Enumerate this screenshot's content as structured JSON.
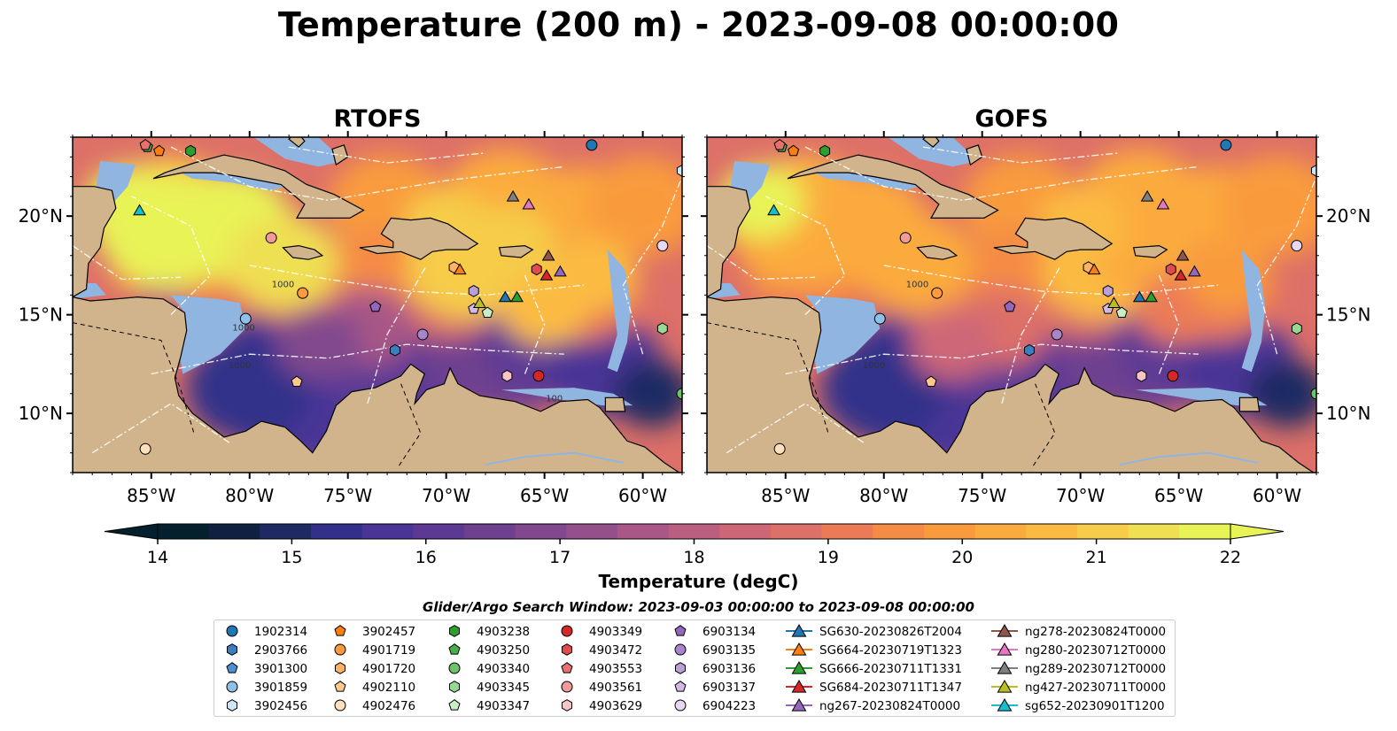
{
  "title": "Temperature (200 m) - 2023-09-08 00:00:00",
  "colors": {
    "ramp": [
      "#04202e",
      "#0e2140",
      "#1f2a63",
      "#32308a",
      "#4a3596",
      "#5c3a94",
      "#6e4190",
      "#81488e",
      "#94508a",
      "#a85787",
      "#bb5f80",
      "#cd6778",
      "#dd7068",
      "#eb7b57",
      "#f58c45",
      "#f99b3c",
      "#fbab3e",
      "#fbbb43",
      "#f6cc4a",
      "#efdf52",
      "#e8f356"
    ],
    "land": "#d2b48c",
    "shelf": "#8fb5e0",
    "frame": "#000000"
  },
  "chart_data": [
    {
      "type": "heatmap",
      "title": "RTOFS",
      "variable": "Temperature (200 m)",
      "x_ticks": [
        "85°W",
        "80°W",
        "75°W",
        "70°W",
        "65°W",
        "60°W"
      ],
      "y_ticks": [
        "10°N",
        "15°N",
        "20°N"
      ],
      "xlim": [
        -89,
        -58
      ],
      "ylim": [
        7,
        24
      ],
      "contour_labels": [
        "1000",
        "1000",
        "1000",
        "100"
      ]
    },
    {
      "type": "heatmap",
      "title": "GOFS",
      "variable": "Temperature (200 m)",
      "x_ticks": [
        "85°W",
        "80°W",
        "75°W",
        "70°W",
        "65°W",
        "60°W"
      ],
      "y_ticks": [
        "10°N",
        "15°N",
        "20°N"
      ],
      "xlim": [
        -89,
        -58
      ],
      "ylim": [
        7,
        24
      ],
      "contour_labels": [
        "1000",
        "1000"
      ]
    }
  ],
  "colorbar": {
    "label": "Temperature (degC)",
    "min": 13.5,
    "max": 22,
    "ticks": [
      "14",
      "15",
      "16",
      "17",
      "18",
      "19",
      "20",
      "21",
      "22"
    ],
    "tick_values": [
      14,
      15,
      16,
      17,
      18,
      19,
      20,
      21,
      22
    ]
  },
  "legend": {
    "title": "Glider/Argo Search Window: 2023-09-03 00:00:00 to 2023-09-08 00:00:00",
    "columns": [
      [
        {
          "label": "1902314",
          "marker": "circle",
          "color": "#1f77b4"
        },
        {
          "label": "2903766",
          "marker": "hexagon",
          "color": "#3a7fbf"
        },
        {
          "label": "3901300",
          "marker": "pentagon",
          "color": "#4d8fd1"
        },
        {
          "label": "3901859",
          "marker": "circle",
          "color": "#8fc1e8"
        },
        {
          "label": "3902456",
          "marker": "hexagon",
          "color": "#cfe6f7"
        }
      ],
      [
        {
          "label": "3902457",
          "marker": "pentagon",
          "color": "#ff7f0e"
        },
        {
          "label": "4901719",
          "marker": "circle",
          "color": "#fd9a3d"
        },
        {
          "label": "4901720",
          "marker": "hexagon",
          "color": "#fdb266"
        },
        {
          "label": "4902110",
          "marker": "pentagon",
          "color": "#fdc88e"
        },
        {
          "label": "4902476",
          "marker": "circle",
          "color": "#fde0bd"
        }
      ],
      [
        {
          "label": "4903238",
          "marker": "hexagon",
          "color": "#2ca02c"
        },
        {
          "label": "4903250",
          "marker": "pentagon",
          "color": "#46b045"
        },
        {
          "label": "4903340",
          "marker": "circle",
          "color": "#6cc36a"
        },
        {
          "label": "4903345",
          "marker": "hexagon",
          "color": "#98d894"
        },
        {
          "label": "4903347",
          "marker": "pentagon",
          "color": "#c9eec4"
        }
      ],
      [
        {
          "label": "4903349",
          "marker": "circle",
          "color": "#d62728"
        },
        {
          "label": "4903472",
          "marker": "hexagon",
          "color": "#e04b4b"
        },
        {
          "label": "4903553",
          "marker": "pentagon",
          "color": "#ea6f6f"
        },
        {
          "label": "4903561",
          "marker": "circle",
          "color": "#f29a9a"
        },
        {
          "label": "4903629",
          "marker": "hexagon",
          "color": "#f8c5c5"
        }
      ],
      [
        {
          "label": "6903134",
          "marker": "pentagon",
          "color": "#9467bd"
        },
        {
          "label": "6903135",
          "marker": "circle",
          "color": "#a784cb"
        },
        {
          "label": "6903136",
          "marker": "hexagon",
          "color": "#bb9fd8"
        },
        {
          "label": "6903137",
          "marker": "pentagon",
          "color": "#cfbae5"
        },
        {
          "label": "6904223",
          "marker": "circle",
          "color": "#e6d8f3"
        }
      ],
      [
        {
          "label": "SG630-20230826T2004",
          "marker": "triangle",
          "color": "#1f77b4",
          "line": true
        },
        {
          "label": "SG664-20230719T1323",
          "marker": "triangle",
          "color": "#ff7f0e",
          "line": true
        },
        {
          "label": "SG666-20230711T1331",
          "marker": "triangle",
          "color": "#2ca02c",
          "line": true
        },
        {
          "label": "SG684-20230711T1347",
          "marker": "triangle",
          "color": "#d62728",
          "line": true
        },
        {
          "label": "ng267-20230824T0000",
          "marker": "triangle",
          "color": "#9467bd",
          "line": true
        }
      ],
      [
        {
          "label": "ng278-20230824T0000",
          "marker": "triangle",
          "color": "#8c564b",
          "line": true
        },
        {
          "label": "ng280-20230712T0000",
          "marker": "triangle",
          "color": "#e377c2",
          "line": true
        },
        {
          "label": "ng289-20230712T0000",
          "marker": "triangle",
          "color": "#7f7f7f",
          "line": true
        },
        {
          "label": "ng427-20230711T0000",
          "marker": "triangle",
          "color": "#bcbd22",
          "line": true
        },
        {
          "label": "sg652-20230901T1200",
          "marker": "triangle",
          "color": "#17becf",
          "line": true
        }
      ]
    ]
  },
  "observations": [
    {
      "id": "1902314",
      "lon": -62.6,
      "lat": 23.6
    },
    {
      "id": "2903766",
      "lon": -72.6,
      "lat": 13.2
    },
    {
      "id": "3901300",
      "lon": -73.6,
      "lat": 15.4
    },
    {
      "id": "3901859",
      "lon": -80.2,
      "lat": 14.8
    },
    {
      "id": "3902456",
      "lon": -58.0,
      "lat": 22.3
    },
    {
      "id": "3902457",
      "lon": -84.6,
      "lat": 23.3
    },
    {
      "id": "4901719",
      "lon": -77.3,
      "lat": 16.1
    },
    {
      "id": "4901720",
      "lon": -69.6,
      "lat": 17.4
    },
    {
      "id": "4902110",
      "lon": -77.6,
      "lat": 11.6
    },
    {
      "id": "4902476",
      "lon": -85.3,
      "lat": 8.2
    },
    {
      "id": "4903238",
      "lon": -83.0,
      "lat": 23.3
    },
    {
      "id": "4903250",
      "lon": -85.2,
      "lat": 23.5
    },
    {
      "id": "4903340",
      "lon": -58.0,
      "lat": 11.0
    },
    {
      "id": "4903345",
      "lon": -59.0,
      "lat": 14.3
    },
    {
      "id": "4903347",
      "lon": -67.9,
      "lat": 15.1
    },
    {
      "id": "4903349",
      "lon": -65.3,
      "lat": 11.9
    },
    {
      "id": "4903472",
      "lon": -65.4,
      "lat": 17.3
    },
    {
      "id": "4903553",
      "lon": -85.3,
      "lat": 23.6
    },
    {
      "id": "4903561",
      "lon": -78.9,
      "lat": 18.9
    },
    {
      "id": "4903629",
      "lon": -66.9,
      "lat": 11.9
    },
    {
      "id": "6903134",
      "lon": -73.6,
      "lat": 15.4
    },
    {
      "id": "6903135",
      "lon": -71.2,
      "lat": 14.0
    },
    {
      "id": "6903136",
      "lon": -68.6,
      "lat": 16.2
    },
    {
      "id": "6903137",
      "lon": -68.6,
      "lat": 15.3
    },
    {
      "id": "6904223",
      "lon": -59.0,
      "lat": 18.5
    },
    {
      "id": "SG630-20230826T2004",
      "lon": -67.0,
      "lat": 15.9
    },
    {
      "id": "SG664-20230719T1323",
      "lon": -69.3,
      "lat": 17.3
    },
    {
      "id": "SG666-20230711T1331",
      "lon": -66.4,
      "lat": 15.9
    },
    {
      "id": "SG684-20230711T1347",
      "lon": -64.9,
      "lat": 17.0
    },
    {
      "id": "ng267-20230824T0000",
      "lon": -64.2,
      "lat": 17.2
    },
    {
      "id": "ng278-20230824T0000",
      "lon": -64.8,
      "lat": 18.0
    },
    {
      "id": "ng280-20230712T0000",
      "lon": -65.8,
      "lat": 20.6
    },
    {
      "id": "ng289-20230712T0000",
      "lon": -66.6,
      "lat": 21.0
    },
    {
      "id": "ng427-20230711T0000",
      "lon": -68.3,
      "lat": 15.6
    },
    {
      "id": "sg652-20230901T1200",
      "lon": -85.6,
      "lat": 20.3
    }
  ]
}
